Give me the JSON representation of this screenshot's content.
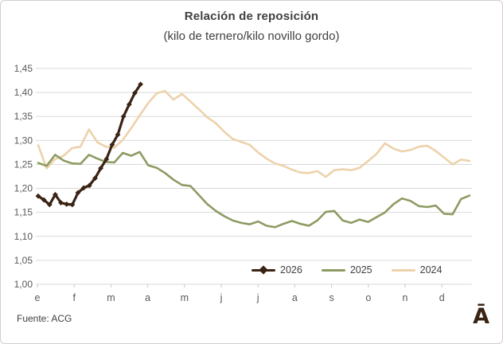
{
  "chart_data": {
    "type": "line",
    "title": "Relación de reposición",
    "subtitle": "(kilo de ternero/kilo novillo gordo)",
    "grid": "horizontal",
    "legend_position": "bottom-right-inside",
    "weeks": 52,
    "ylim": [
      1.0,
      1.45
    ],
    "y_ticks": [
      {
        "v": 1.45,
        "label": "1,45"
      },
      {
        "v": 1.4,
        "label": "1,40"
      },
      {
        "v": 1.35,
        "label": "1,35"
      },
      {
        "v": 1.3,
        "label": "1,30"
      },
      {
        "v": 1.25,
        "label": "1,25"
      },
      {
        "v": 1.2,
        "label": "1,20"
      },
      {
        "v": 1.15,
        "label": "1,15"
      },
      {
        "v": 1.1,
        "label": "1,10"
      },
      {
        "v": 1.05,
        "label": "1,05"
      },
      {
        "v": 1.0,
        "label": "1,00"
      }
    ],
    "x_tick_labels": [
      "e",
      "f",
      "m",
      "a",
      "m",
      "j",
      "j",
      "a",
      "s",
      "o",
      "n",
      "d"
    ],
    "series": [
      {
        "name": "2026",
        "color": "#3b2314",
        "marker": "diamond",
        "x_week_span": [
          1,
          13.1
        ],
        "values": [
          1.184,
          1.176,
          1.166,
          1.187,
          1.17,
          1.167,
          1.166,
          1.191,
          1.201,
          1.206,
          1.221,
          1.242,
          1.261,
          1.291,
          1.312,
          1.35,
          1.375,
          1.399,
          1.417
        ]
      },
      {
        "name": "2025",
        "color": "#8d9b63",
        "marker": "none",
        "x_week_span": [
          1,
          52
        ],
        "values": [
          1.253,
          1.247,
          1.27,
          1.258,
          1.252,
          1.251,
          1.27,
          1.262,
          1.255,
          1.254,
          1.274,
          1.268,
          1.276,
          1.248,
          1.243,
          1.232,
          1.218,
          1.207,
          1.205,
          1.186,
          1.167,
          1.153,
          1.142,
          1.133,
          1.128,
          1.125,
          1.131,
          1.122,
          1.119,
          1.126,
          1.132,
          1.126,
          1.122,
          1.133,
          1.151,
          1.153,
          1.133,
          1.128,
          1.135,
          1.13,
          1.14,
          1.15,
          1.167,
          1.179,
          1.174,
          1.163,
          1.161,
          1.164,
          1.147,
          1.146,
          1.178,
          1.185
        ]
      },
      {
        "name": "2024",
        "color": "#edd2ab",
        "marker": "none",
        "x_week_span": [
          1,
          52
        ],
        "values": [
          1.29,
          1.242,
          1.261,
          1.268,
          1.284,
          1.287,
          1.323,
          1.296,
          1.287,
          1.285,
          1.301,
          1.326,
          1.352,
          1.378,
          1.398,
          1.403,
          1.385,
          1.397,
          1.381,
          1.365,
          1.348,
          1.336,
          1.318,
          1.303,
          1.297,
          1.291,
          1.275,
          1.262,
          1.252,
          1.247,
          1.239,
          1.233,
          1.232,
          1.236,
          1.224,
          1.238,
          1.24,
          1.238,
          1.243,
          1.257,
          1.272,
          1.294,
          1.283,
          1.277,
          1.28,
          1.287,
          1.289,
          1.278,
          1.264,
          1.25,
          1.26,
          1.257
        ]
      }
    ]
  },
  "footer": {
    "source": "Fuente: ACG",
    "logo_glyph": "Ā"
  }
}
